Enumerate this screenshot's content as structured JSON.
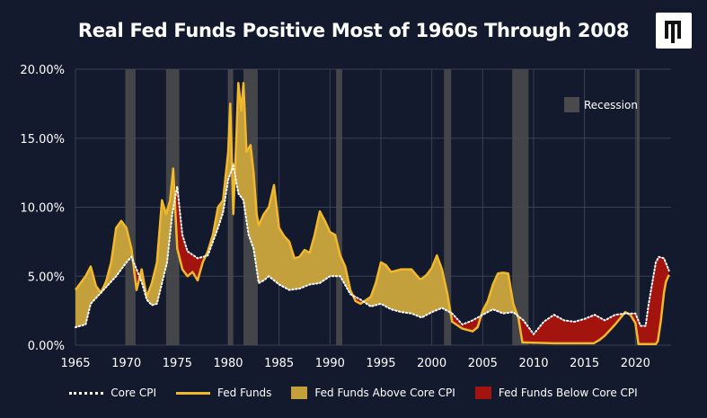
{
  "header": {
    "title": "Real Fed Funds Positive Most of 1960s Through 2008"
  },
  "colors": {
    "background": "#131a2e",
    "fed_funds": "#f2b82c",
    "core_cpi": "#ffffff",
    "above_fill": "#c4a03c",
    "below_fill": "#a3140e",
    "recession": "#4a4a4c",
    "grid": "#3a4054"
  },
  "legend": {
    "core_cpi": "Core CPI",
    "fed_funds": "Fed Funds",
    "above": "Fed Funds Above Core CPI",
    "below": "Fed Funds Below Core CPI",
    "recession": "Recession"
  },
  "chart_data": {
    "type": "line",
    "title": "Real Fed Funds Positive Most of 1960s Through 2008",
    "xlim": [
      1965,
      2023.5
    ],
    "ylim": [
      0,
      20
    ],
    "x_ticks": [
      1965,
      1970,
      1975,
      1980,
      1985,
      1990,
      1995,
      2000,
      2005,
      2010,
      2015,
      2020
    ],
    "y_ticks": [
      0,
      5,
      10,
      15,
      20
    ],
    "y_tick_labels": [
      "0.00%",
      "5.00%",
      "10.00%",
      "15.00%",
      "20.00%"
    ],
    "grid": true,
    "legend_position": "bottom",
    "recessions": [
      [
        1969.9,
        1970.9
      ],
      [
        1973.9,
        1975.2
      ],
      [
        1980.0,
        1980.5
      ],
      [
        1981.5,
        1982.9
      ],
      [
        1990.6,
        1991.2
      ],
      [
        2001.2,
        2001.9
      ],
      [
        2007.9,
        2009.5
      ],
      [
        2020.1,
        2020.4
      ]
    ],
    "series": [
      {
        "name": "Fed Funds",
        "points": [
          [
            1965.0,
            4.0
          ],
          [
            1966.0,
            5.0
          ],
          [
            1966.5,
            5.7
          ],
          [
            1967.0,
            4.3
          ],
          [
            1967.5,
            3.8
          ],
          [
            1968.0,
            4.6
          ],
          [
            1968.5,
            6.0
          ],
          [
            1969.0,
            8.5
          ],
          [
            1969.5,
            9.0
          ],
          [
            1970.0,
            8.5
          ],
          [
            1970.5,
            7.0
          ],
          [
            1971.0,
            4.0
          ],
          [
            1971.5,
            5.5
          ],
          [
            1972.0,
            3.5
          ],
          [
            1972.5,
            4.5
          ],
          [
            1973.0,
            6.0
          ],
          [
            1973.5,
            10.5
          ],
          [
            1973.9,
            9.5
          ],
          [
            1974.3,
            10.5
          ],
          [
            1974.6,
            12.8
          ],
          [
            1975.0,
            7.0
          ],
          [
            1975.5,
            5.5
          ],
          [
            1976.0,
            5.0
          ],
          [
            1976.5,
            5.3
          ],
          [
            1977.0,
            4.7
          ],
          [
            1977.5,
            6.0
          ],
          [
            1978.0,
            6.8
          ],
          [
            1978.5,
            8.0
          ],
          [
            1979.0,
            10.0
          ],
          [
            1979.5,
            10.5
          ],
          [
            1980.0,
            14.0
          ],
          [
            1980.2,
            17.5
          ],
          [
            1980.5,
            9.5
          ],
          [
            1980.8,
            15.0
          ],
          [
            1981.0,
            19.0
          ],
          [
            1981.3,
            17.0
          ],
          [
            1981.5,
            19.0
          ],
          [
            1981.8,
            14.0
          ],
          [
            1982.2,
            14.5
          ],
          [
            1982.5,
            12.5
          ],
          [
            1982.8,
            9.5
          ],
          [
            1983.0,
            8.7
          ],
          [
            1983.5,
            9.5
          ],
          [
            1984.0,
            10.0
          ],
          [
            1984.5,
            11.6
          ],
          [
            1985.0,
            8.5
          ],
          [
            1985.5,
            7.9
          ],
          [
            1986.0,
            7.5
          ],
          [
            1986.5,
            6.3
          ],
          [
            1987.0,
            6.4
          ],
          [
            1987.5,
            6.9
          ],
          [
            1988.0,
            6.7
          ],
          [
            1988.5,
            8.0
          ],
          [
            1989.0,
            9.7
          ],
          [
            1989.5,
            9.0
          ],
          [
            1990.0,
            8.2
          ],
          [
            1990.5,
            8.0
          ],
          [
            1991.0,
            6.5
          ],
          [
            1991.5,
            5.7
          ],
          [
            1992.0,
            4.0
          ],
          [
            1992.5,
            3.2
          ],
          [
            1993.0,
            3.0
          ],
          [
            1994.0,
            3.5
          ],
          [
            1994.5,
            4.5
          ],
          [
            1995.0,
            6.0
          ],
          [
            1995.5,
            5.8
          ],
          [
            1996.0,
            5.3
          ],
          [
            1997.0,
            5.5
          ],
          [
            1998.0,
            5.5
          ],
          [
            1998.8,
            4.8
          ],
          [
            1999.0,
            4.8
          ],
          [
            1999.5,
            5.1
          ],
          [
            2000.0,
            5.6
          ],
          [
            2000.5,
            6.5
          ],
          [
            2001.0,
            5.5
          ],
          [
            2001.5,
            3.8
          ],
          [
            2002.0,
            1.7
          ],
          [
            2003.0,
            1.2
          ],
          [
            2004.0,
            1.0
          ],
          [
            2004.5,
            1.3
          ],
          [
            2005.0,
            2.5
          ],
          [
            2005.5,
            3.2
          ],
          [
            2006.0,
            4.4
          ],
          [
            2006.5,
            5.2
          ],
          [
            2007.0,
            5.25
          ],
          [
            2007.5,
            5.2
          ],
          [
            2008.0,
            3.0
          ],
          [
            2008.5,
            2.0
          ],
          [
            2008.9,
            0.2
          ],
          [
            2010.0,
            0.18
          ],
          [
            2012.0,
            0.14
          ],
          [
            2015.9,
            0.14
          ],
          [
            2016.5,
            0.4
          ],
          [
            2017.0,
            0.7
          ],
          [
            2018.0,
            1.5
          ],
          [
            2019.0,
            2.4
          ],
          [
            2019.5,
            2.2
          ],
          [
            2020.0,
            1.6
          ],
          [
            2020.3,
            0.08
          ],
          [
            2022.0,
            0.08
          ],
          [
            2022.2,
            0.3
          ],
          [
            2022.5,
            1.8
          ],
          [
            2022.8,
            3.8
          ],
          [
            2023.0,
            4.6
          ],
          [
            2023.3,
            5.1
          ]
        ]
      },
      {
        "name": "Core CPI",
        "points": [
          [
            1965.0,
            1.3
          ],
          [
            1966.0,
            1.5
          ],
          [
            1966.5,
            3.0
          ],
          [
            1967.0,
            3.4
          ],
          [
            1968.0,
            4.2
          ],
          [
            1969.0,
            5.0
          ],
          [
            1970.0,
            6.0
          ],
          [
            1970.5,
            6.4
          ],
          [
            1971.0,
            5.5
          ],
          [
            1971.5,
            4.6
          ],
          [
            1972.0,
            3.3
          ],
          [
            1972.5,
            2.9
          ],
          [
            1973.0,
            3.0
          ],
          [
            1974.0,
            6.0
          ],
          [
            1974.5,
            9.5
          ],
          [
            1975.0,
            11.5
          ],
          [
            1975.5,
            8.0
          ],
          [
            1976.0,
            6.8
          ],
          [
            1977.0,
            6.3
          ],
          [
            1978.0,
            6.5
          ],
          [
            1978.5,
            7.5
          ],
          [
            1979.0,
            8.5
          ],
          [
            1979.5,
            9.6
          ],
          [
            1980.0,
            12.0
          ],
          [
            1980.5,
            13.0
          ],
          [
            1981.0,
            11.0
          ],
          [
            1981.5,
            10.5
          ],
          [
            1982.0,
            8.0
          ],
          [
            1982.5,
            7.0
          ],
          [
            1983.0,
            4.5
          ],
          [
            1983.5,
            4.7
          ],
          [
            1984.0,
            5.0
          ],
          [
            1985.0,
            4.4
          ],
          [
            1986.0,
            4.0
          ],
          [
            1987.0,
            4.1
          ],
          [
            1988.0,
            4.4
          ],
          [
            1989.0,
            4.5
          ],
          [
            1990.0,
            5.0
          ],
          [
            1991.0,
            5.0
          ],
          [
            1992.0,
            3.7
          ],
          [
            1993.0,
            3.3
          ],
          [
            1994.0,
            2.8
          ],
          [
            1995.0,
            3.0
          ],
          [
            1996.0,
            2.6
          ],
          [
            1997.0,
            2.4
          ],
          [
            1998.0,
            2.3
          ],
          [
            1999.0,
            2.0
          ],
          [
            2000.0,
            2.4
          ],
          [
            2001.0,
            2.7
          ],
          [
            2002.0,
            2.3
          ],
          [
            2003.0,
            1.5
          ],
          [
            2004.0,
            1.8
          ],
          [
            2005.0,
            2.2
          ],
          [
            2006.0,
            2.6
          ],
          [
            2007.0,
            2.3
          ],
          [
            2008.0,
            2.4
          ],
          [
            2009.0,
            1.8
          ],
          [
            2010.0,
            0.8
          ],
          [
            2011.0,
            1.7
          ],
          [
            2012.0,
            2.2
          ],
          [
            2013.0,
            1.8
          ],
          [
            2014.0,
            1.7
          ],
          [
            2015.0,
            1.9
          ],
          [
            2016.0,
            2.2
          ],
          [
            2017.0,
            1.8
          ],
          [
            2018.0,
            2.2
          ],
          [
            2019.0,
            2.3
          ],
          [
            2020.0,
            2.3
          ],
          [
            2020.5,
            1.4
          ],
          [
            2021.0,
            1.4
          ],
          [
            2021.3,
            3.0
          ],
          [
            2021.6,
            4.3
          ],
          [
            2022.0,
            6.0
          ],
          [
            2022.3,
            6.4
          ],
          [
            2022.8,
            6.3
          ],
          [
            2023.3,
            5.4
          ]
        ]
      }
    ]
  }
}
